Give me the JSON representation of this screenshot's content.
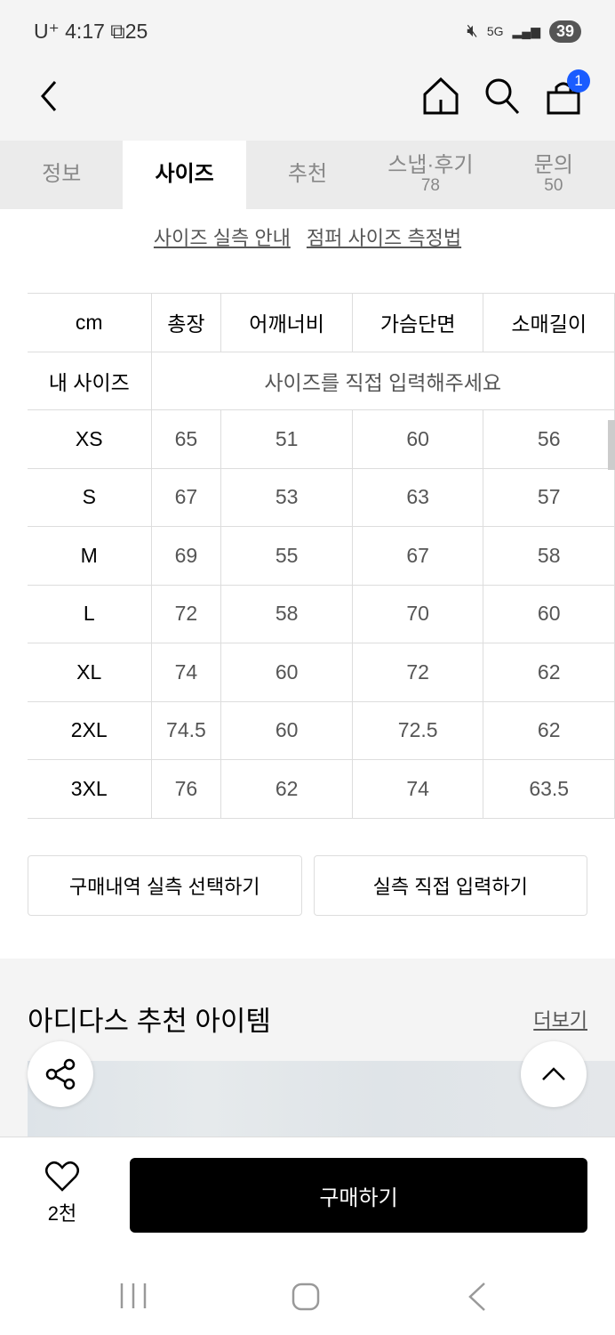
{
  "status": {
    "carrier": "U⁺",
    "time": "4:17",
    "notif_count": "25",
    "network": "5G",
    "battery": "39"
  },
  "nav": {
    "cart_count": "1"
  },
  "tabs": [
    {
      "label": "정보"
    },
    {
      "label": "사이즈",
      "active": true
    },
    {
      "label": "추천"
    },
    {
      "label": "스냅·후기",
      "count": "78"
    },
    {
      "label": "문의",
      "count": "50"
    }
  ],
  "links": {
    "guide": "사이즈 실측 안내",
    "measure": "점퍼 사이즈 측정법"
  },
  "size_table": {
    "headers": [
      "cm",
      "총장",
      "어깨너비",
      "가슴단면",
      "소매길이"
    ],
    "my_size_label": "내 사이즈",
    "my_size_placeholder": "사이즈를 직접 입력해주세요",
    "rows": [
      [
        "XS",
        "65",
        "51",
        "60",
        "56"
      ],
      [
        "S",
        "67",
        "53",
        "63",
        "57"
      ],
      [
        "M",
        "69",
        "55",
        "67",
        "58"
      ],
      [
        "L",
        "72",
        "58",
        "70",
        "60"
      ],
      [
        "XL",
        "74",
        "60",
        "72",
        "62"
      ],
      [
        "2XL",
        "74.5",
        "60",
        "72.5",
        "62"
      ],
      [
        "3XL",
        "76",
        "62",
        "74",
        "63.5"
      ]
    ]
  },
  "actions": {
    "select_history": "구매내역 실측 선택하기",
    "manual_input": "실측 직접 입력하기"
  },
  "recommend": {
    "title": "아디다스 추천 아이템",
    "more": "더보기"
  },
  "bottom": {
    "likes": "2천",
    "buy": "구매하기"
  },
  "colors": {
    "accent": "#1a5cff",
    "buy_button": "#000000"
  }
}
